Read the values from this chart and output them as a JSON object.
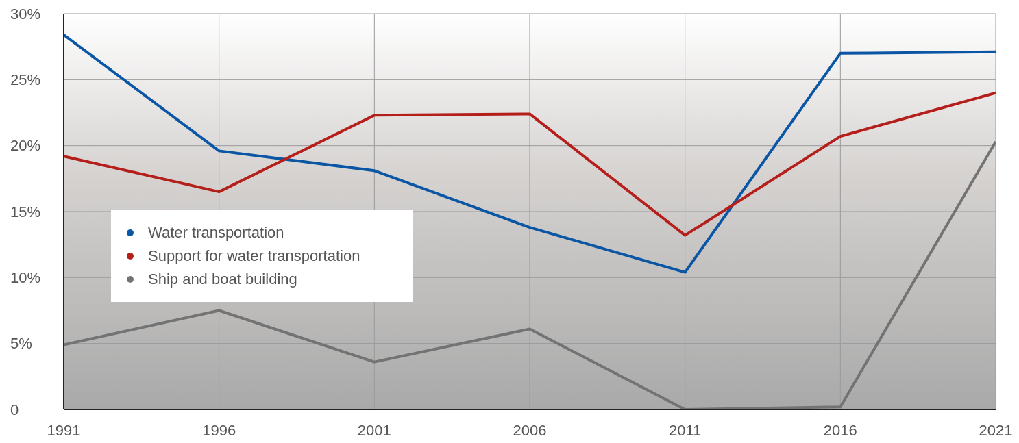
{
  "chart_data": {
    "type": "line",
    "x": [
      1991,
      1996,
      2001,
      2006,
      2011,
      2016,
      2021
    ],
    "series": [
      {
        "name": "Water transportation",
        "color": "#0b56a4",
        "values": [
          28.4,
          19.6,
          18.1,
          13.8,
          10.4,
          27.0,
          27.1
        ]
      },
      {
        "name": "Support for water transportation",
        "color": "#b51f1b",
        "values": [
          19.2,
          16.5,
          22.3,
          22.4,
          13.2,
          20.7,
          24.0
        ]
      },
      {
        "name": "Ship and boat building",
        "color": "#737373",
        "values": [
          4.9,
          7.5,
          3.6,
          6.1,
          0,
          0.2,
          20.3
        ]
      }
    ],
    "xlim": [
      1991,
      2021
    ],
    "xticks": [
      1991,
      1996,
      2001,
      2006,
      2011,
      2016,
      2021
    ],
    "ylim": [
      0,
      30
    ],
    "yticks": [
      0,
      {
        "value": 5,
        "label": "5%"
      },
      {
        "value": 10,
        "label": "10%"
      },
      {
        "value": 15,
        "label": "15%"
      },
      {
        "value": 20,
        "label": "20%"
      },
      {
        "value": 25,
        "label": "25%"
      },
      {
        "value": 30,
        "label": "30%"
      }
    ],
    "grid": true,
    "legend": "left",
    "marker": "none",
    "line_style": "solid"
  }
}
